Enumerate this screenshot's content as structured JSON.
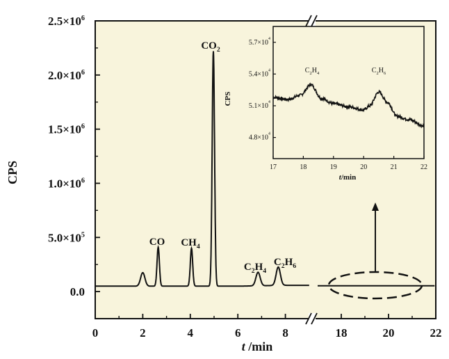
{
  "chart_data": {
    "type": "line",
    "background": "#f8f4dc",
    "line_color": "#111111",
    "xlabel": "t /min",
    "ylabel": "CPS",
    "x_ticks": [
      "0",
      "2",
      "4",
      "6",
      "8",
      "18",
      "20",
      "22"
    ],
    "x_segments": [
      [
        0,
        9
      ],
      [
        17,
        22
      ]
    ],
    "axis_break": "//",
    "y_ticks": [
      "0.0",
      "5.0×10^5",
      "1.0×10^6",
      "1.5×10^6",
      "2.0×10^6",
      "2.5×10^6"
    ],
    "ylim": [
      -250000,
      2500000
    ],
    "baseline": 50000,
    "peaks": [
      {
        "label": "",
        "x": 2.0,
        "height": 125000
      },
      {
        "label": "CO",
        "x": 2.65,
        "height": 360000
      },
      {
        "label": "CH4",
        "x": 4.05,
        "height": 350000
      },
      {
        "label": "CO2",
        "x": 4.97,
        "height": 2170000
      },
      {
        "label": "C2H4",
        "x": 6.85,
        "height": 125000
      },
      {
        "label": "C2H6",
        "x": 7.7,
        "height": 170000
      }
    ],
    "inset": {
      "xlabel": "t /min",
      "ylabel": "CPS",
      "xlim": [
        17,
        22
      ],
      "x_ticks": [
        "17",
        "18",
        "19",
        "20",
        "21",
        "22"
      ],
      "ylim": [
        46000,
        58500
      ],
      "y_ticks": [
        "4.8×10^4",
        "5.1×10^4",
        "5.4×10^4",
        "5.7×10^4"
      ],
      "series": [
        [
          17.0,
          51800
        ],
        [
          17.5,
          51600
        ],
        [
          17.9,
          52000
        ],
        [
          18.25,
          53000
        ],
        [
          18.6,
          51700
        ],
        [
          19.0,
          51200
        ],
        [
          19.5,
          50900
        ],
        [
          20.0,
          50600
        ],
        [
          20.2,
          51000
        ],
        [
          20.5,
          52300
        ],
        [
          20.8,
          51300
        ],
        [
          21.1,
          50000
        ],
        [
          21.5,
          49700
        ],
        [
          22.0,
          49100
        ]
      ],
      "peaks": [
        {
          "label": "C2H4",
          "x": 18.25
        },
        {
          "label": "C2H6",
          "x": 20.5
        }
      ]
    }
  }
}
